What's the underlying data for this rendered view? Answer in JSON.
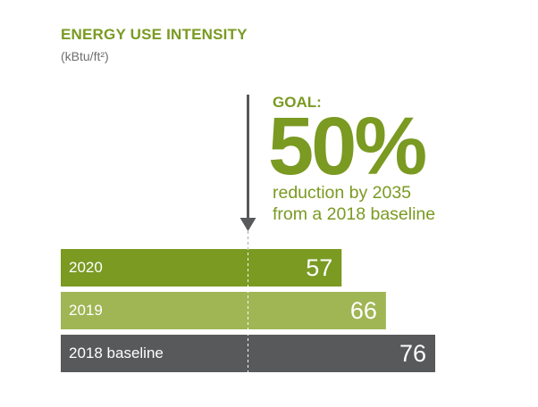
{
  "chart_data": {
    "type": "bar",
    "orientation": "horizontal",
    "title": "ENERGY USE INTENSITY",
    "unit_label": "(kBtu/ft²)",
    "categories": [
      "2020",
      "2019",
      "2018 baseline"
    ],
    "values": [
      57,
      66,
      76
    ],
    "value_labels": [
      "57",
      "66",
      "76"
    ],
    "colors": [
      "#7a9a22",
      "#a0b655",
      "#58595b"
    ],
    "goal_line_value": 38,
    "xlim": [
      0,
      76
    ],
    "grid": false,
    "annotation": {
      "label": "GOAL:",
      "value": "50%",
      "description_line1": "reduction by 2035",
      "description_line2": "from a 2018 baseline"
    }
  }
}
